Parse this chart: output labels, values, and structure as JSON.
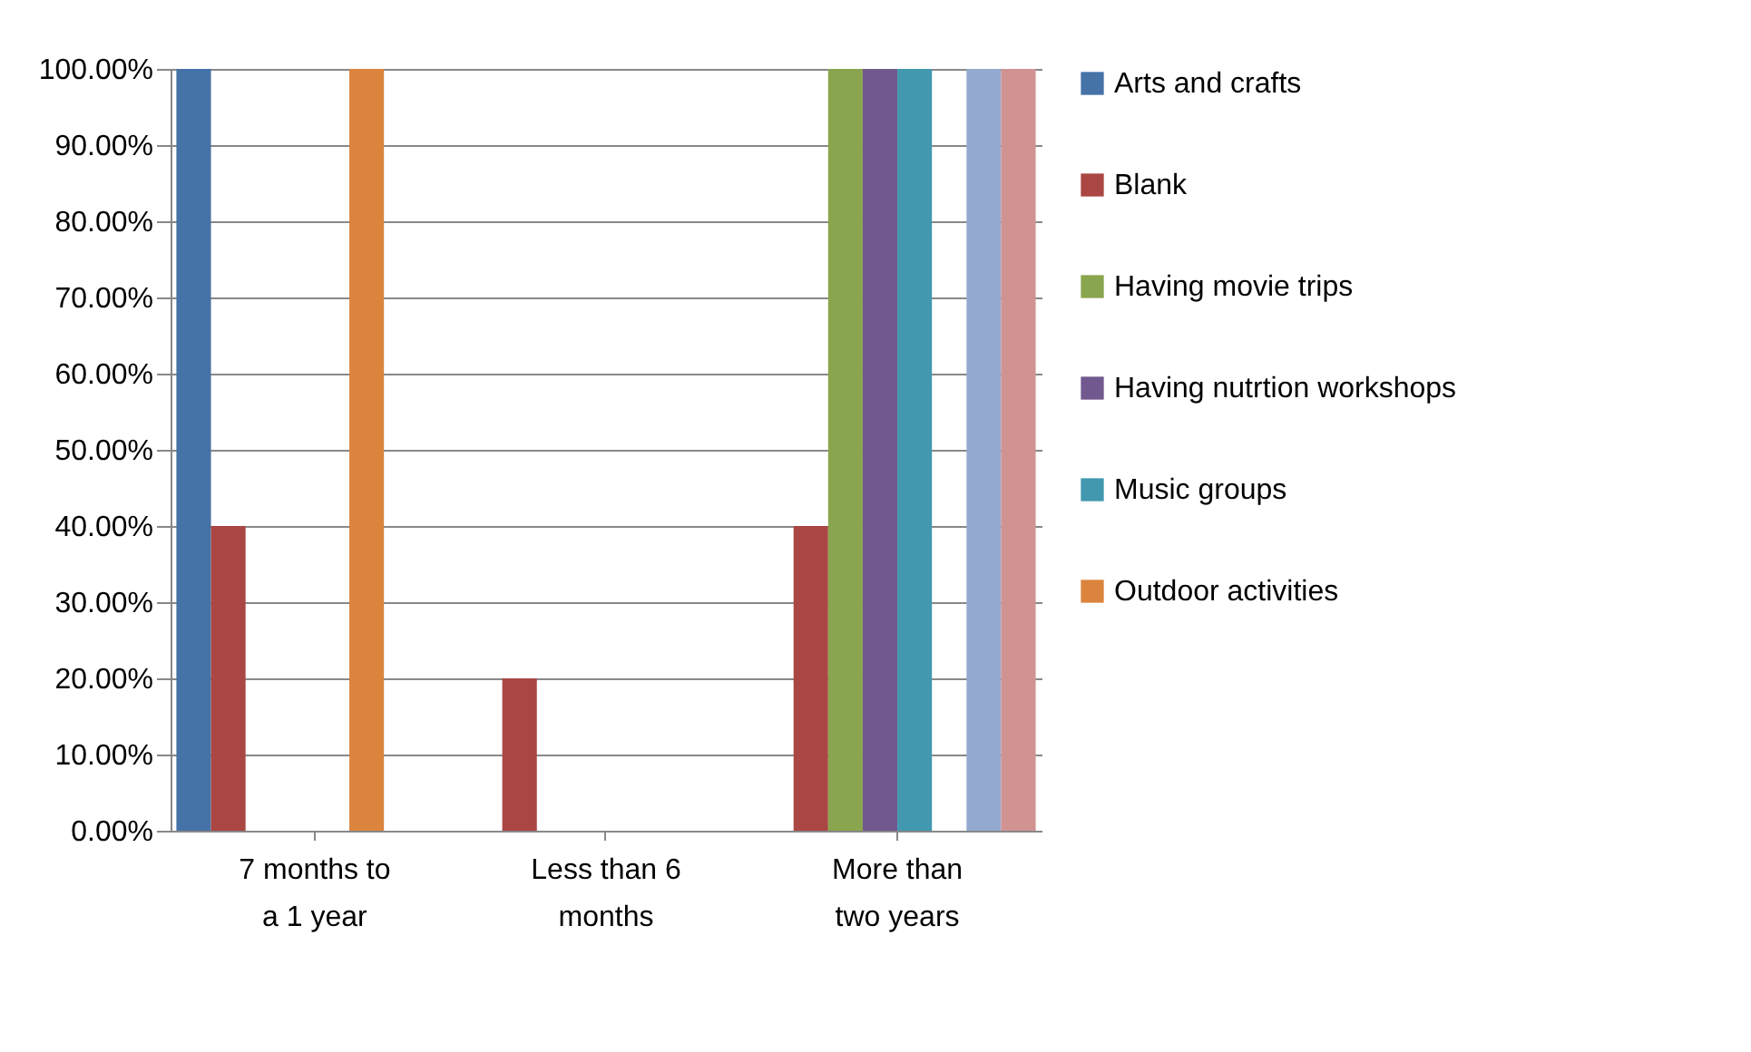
{
  "chart_data": {
    "type": "bar",
    "categories": [
      "7 months to a 1 year",
      "Less than 6 months",
      "More than two years"
    ],
    "series": [
      {
        "name": "Arts and crafts",
        "color": "#4572a7",
        "values": [
          100,
          0,
          0
        ]
      },
      {
        "name": "Blank",
        "color": "#aa4643",
        "values": [
          40,
          20,
          40
        ]
      },
      {
        "name": "Having movie trips",
        "color": "#89a54e",
        "values": [
          0,
          0,
          100
        ]
      },
      {
        "name": "Having nutrtion workshops",
        "color": "#71588f",
        "values": [
          0,
          0,
          100
        ]
      },
      {
        "name": "Music groups",
        "color": "#4198af",
        "values": [
          0,
          0,
          100
        ]
      },
      {
        "name": "Outdoor  activities",
        "color": "#db843d",
        "values": [
          100,
          0,
          0
        ]
      },
      {
        "color": "#93a9cf",
        "values": [
          0,
          0,
          100
        ]
      },
      {
        "color": "#d19392",
        "values": [
          0,
          0,
          100
        ]
      }
    ],
    "ylim": [
      0,
      100
    ],
    "yticks": [
      {
        "value": 0,
        "label": "0.00%"
      },
      {
        "value": 10,
        "label": "10.00%"
      },
      {
        "value": 20,
        "label": "20.00%"
      },
      {
        "value": 30,
        "label": "30.00%"
      },
      {
        "value": 40,
        "label": "40.00%"
      },
      {
        "value": 50,
        "label": "50.00%"
      },
      {
        "value": 60,
        "label": "60.00%"
      },
      {
        "value": 70,
        "label": "70.00%"
      },
      {
        "value": 80,
        "label": "80.00%"
      },
      {
        "value": 90,
        "label": "90.00%"
      },
      {
        "value": 100,
        "label": "100.00%"
      }
    ],
    "grid": "y",
    "legend": "right"
  }
}
